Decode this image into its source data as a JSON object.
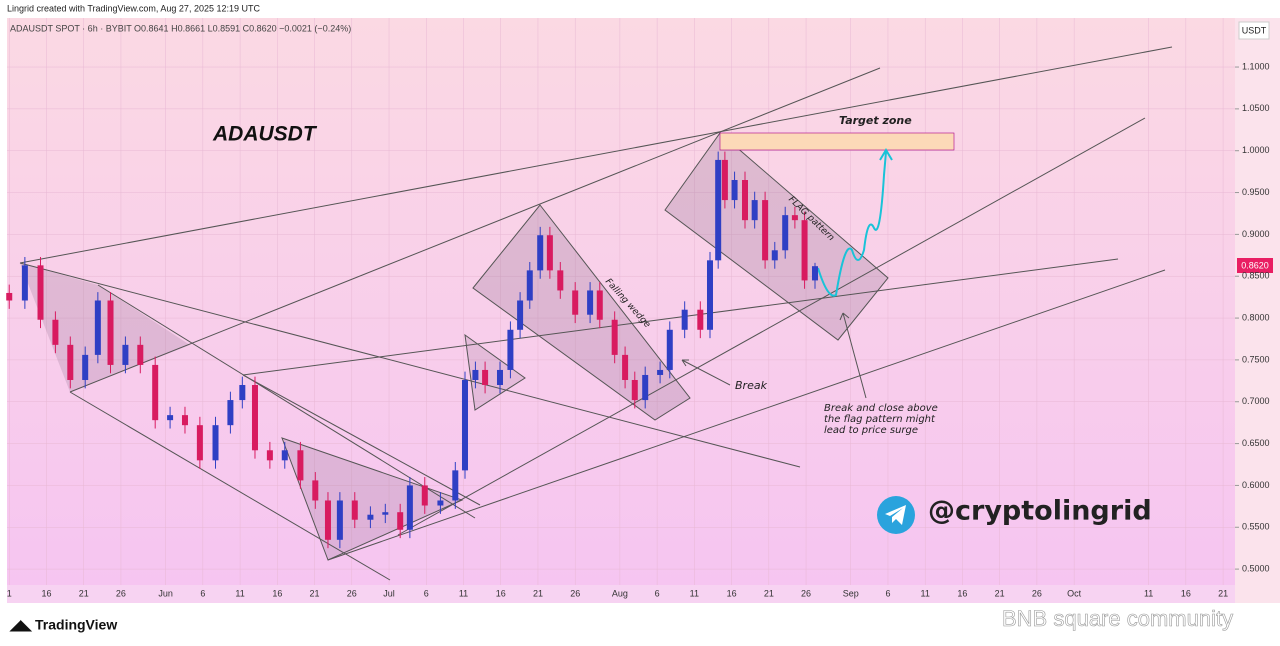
{
  "header": {
    "credit": "Lingrid created with TradingView.com, Aug 27, 2025 12:19 UTC",
    "symbol_line": "ADAUSDT SPOT · 6h · BYBIT  O0.8641 H0.8661 L0.8591 C0.8620 −0.0021 (−0.24%)",
    "scale_unit": "USDT"
  },
  "chart_data": {
    "type": "candlestick",
    "title": "ADAUSDT",
    "x": [
      131.0,
      133.1,
      135.2,
      137.2,
      139.2,
      141.2,
      142.9,
      144.6,
      146.6,
      148.6,
      150.6,
      152.6,
      154.6,
      156.6,
      158.7,
      160.7,
      162.3,
      164.0,
      166.0,
      168.0,
      170.1,
      172.1,
      173.8,
      175.4,
      177.4,
      179.5,
      181.5,
      183.5,
      184.8,
      186.8,
      188.9,
      190.9,
      192.2,
      193.6,
      194.9,
      196.9,
      198.3,
      199.6,
      200.9,
      202.3,
      203.6,
      205.0,
      207.0,
      209.0,
      210.3,
      212.3,
      213.7,
      215.0,
      216.4,
      218.4,
      219.7,
      221.7,
      223.8,
      225.1,
      226.2,
      227.1,
      228.4,
      229.8,
      231.1,
      232.5,
      233.8,
      235.2,
      236.5,
      237.8,
      239.2
    ],
    "open": [
      0.83,
      0.821,
      0.863,
      0.798,
      0.768,
      0.726,
      0.756,
      0.821,
      0.744,
      0.768,
      0.744,
      0.678,
      0.684,
      0.672,
      0.63,
      0.672,
      0.702,
      0.72,
      0.642,
      0.63,
      0.642,
      0.606,
      0.582,
      0.535,
      0.582,
      0.559,
      0.565,
      0.568,
      0.547,
      0.6,
      0.576,
      0.582,
      0.618,
      0.726,
      0.738,
      0.72,
      0.738,
      0.786,
      0.821,
      0.857,
      0.899,
      0.857,
      0.833,
      0.804,
      0.833,
      0.798,
      0.756,
      0.726,
      0.702,
      0.732,
      0.738,
      0.786,
      0.81,
      0.786,
      0.869,
      0.989,
      0.941,
      0.965,
      0.917,
      0.941,
      0.869,
      0.881,
      0.923,
      0.917,
      0.845
    ],
    "high": [
      0.84,
      0.873,
      0.873,
      0.808,
      0.778,
      0.766,
      0.831,
      0.831,
      0.778,
      0.778,
      0.754,
      0.694,
      0.694,
      0.682,
      0.682,
      0.712,
      0.73,
      0.73,
      0.652,
      0.652,
      0.652,
      0.616,
      0.592,
      0.592,
      0.592,
      0.575,
      0.578,
      0.578,
      0.61,
      0.61,
      0.592,
      0.628,
      0.736,
      0.748,
      0.748,
      0.748,
      0.796,
      0.831,
      0.867,
      0.909,
      0.909,
      0.867,
      0.843,
      0.843,
      0.843,
      0.808,
      0.766,
      0.736,
      0.742,
      0.748,
      0.796,
      0.82,
      0.82,
      0.879,
      0.999,
      0.999,
      0.975,
      0.975,
      0.951,
      0.951,
      0.891,
      0.933,
      0.933,
      0.927,
      0.866
    ],
    "low": [
      0.811,
      0.811,
      0.788,
      0.758,
      0.716,
      0.716,
      0.746,
      0.734,
      0.734,
      0.734,
      0.668,
      0.668,
      0.662,
      0.62,
      0.62,
      0.662,
      0.692,
      0.632,
      0.62,
      0.62,
      0.596,
      0.572,
      0.525,
      0.525,
      0.549,
      0.549,
      0.555,
      0.537,
      0.537,
      0.566,
      0.566,
      0.572,
      0.608,
      0.716,
      0.71,
      0.71,
      0.728,
      0.776,
      0.811,
      0.847,
      0.847,
      0.823,
      0.794,
      0.794,
      0.788,
      0.746,
      0.716,
      0.692,
      0.692,
      0.722,
      0.728,
      0.776,
      0.776,
      0.776,
      0.859,
      0.931,
      0.931,
      0.907,
      0.907,
      0.859,
      0.859,
      0.871,
      0.907,
      0.835,
      0.835
    ],
    "close": [
      0.821,
      0.863,
      0.798,
      0.768,
      0.726,
      0.756,
      0.821,
      0.744,
      0.768,
      0.744,
      0.678,
      0.684,
      0.672,
      0.63,
      0.672,
      0.702,
      0.72,
      0.642,
      0.63,
      0.642,
      0.606,
      0.582,
      0.535,
      0.582,
      0.559,
      0.565,
      0.568,
      0.547,
      0.6,
      0.576,
      0.582,
      0.618,
      0.726,
      0.738,
      0.72,
      0.738,
      0.786,
      0.821,
      0.857,
      0.899,
      0.857,
      0.833,
      0.804,
      0.833,
      0.798,
      0.756,
      0.726,
      0.702,
      0.732,
      0.738,
      0.786,
      0.81,
      0.786,
      0.869,
      0.989,
      0.941,
      0.965,
      0.917,
      0.941,
      0.869,
      0.881,
      0.923,
      0.917,
      0.845,
      0.862
    ],
    "up_color": "#2f3fc4",
    "down_color": "#d81b60",
    "xlim": [
      130.7,
      295.6
    ],
    "xticks": [
      {
        "value": 131,
        "label": "1"
      },
      {
        "value": 136,
        "label": "16"
      },
      {
        "value": 141,
        "label": "21"
      },
      {
        "value": 146,
        "label": "26"
      },
      {
        "value": 152,
        "label": "Jun"
      },
      {
        "value": 157,
        "label": "6"
      },
      {
        "value": 162,
        "label": "11"
      },
      {
        "value": 167,
        "label": "16"
      },
      {
        "value": 172,
        "label": "21"
      },
      {
        "value": 177,
        "label": "26"
      },
      {
        "value": 182,
        "label": "Jul"
      },
      {
        "value": 187,
        "label": "6"
      },
      {
        "value": 192,
        "label": "11"
      },
      {
        "value": 197,
        "label": "16"
      },
      {
        "value": 202,
        "label": "21"
      },
      {
        "value": 207,
        "label": "26"
      },
      {
        "value": 213,
        "label": "Aug"
      },
      {
        "value": 218,
        "label": "6"
      },
      {
        "value": 223,
        "label": "11"
      },
      {
        "value": 228,
        "label": "16"
      },
      {
        "value": 233,
        "label": "21"
      },
      {
        "value": 238,
        "label": "26"
      },
      {
        "value": 244,
        "label": "Sep"
      },
      {
        "value": 249,
        "label": "6"
      },
      {
        "value": 254,
        "label": "11"
      },
      {
        "value": 259,
        "label": "16"
      },
      {
        "value": 264,
        "label": "21"
      },
      {
        "value": 269,
        "label": "26"
      },
      {
        "value": 274,
        "label": "Oct"
      },
      {
        "value": 284,
        "label": "11"
      },
      {
        "value": 289,
        "label": "16"
      },
      {
        "value": 294,
        "label": "21"
      }
    ],
    "ylim": [
      0.481,
      1.1586
    ],
    "yticks": [
      {
        "value": 0.5,
        "label": "0.5000"
      },
      {
        "value": 0.55,
        "label": "0.5500"
      },
      {
        "value": 0.6,
        "label": "0.6000"
      },
      {
        "value": 0.65,
        "label": "0.6500"
      },
      {
        "value": 0.7,
        "label": "0.7000"
      },
      {
        "value": 0.75,
        "label": "0.7500"
      },
      {
        "value": 0.8,
        "label": "0.8000"
      },
      {
        "value": 0.85,
        "label": "0.8500"
      },
      {
        "value": 0.9,
        "label": "0.9000"
      },
      {
        "value": 0.95,
        "label": "0.9500"
      },
      {
        "value": 1.0,
        "label": "1.0000"
      },
      {
        "value": 1.05,
        "label": "1.0500"
      },
      {
        "value": 1.1,
        "label": "1.1000"
      }
    ],
    "grid": true,
    "last_price_label": "0.8620",
    "annotations": {
      "target": "Target zone",
      "flag": "FLAG pattern",
      "wedge": "Falling wedge",
      "break": "Break",
      "note": [
        "Break and close above",
        "the flag pattern might",
        "lead to price surge"
      ],
      "handle": "@cryptolingrid"
    }
  },
  "footer": {
    "brand": "TradingView",
    "watermark": "BNB square community"
  }
}
